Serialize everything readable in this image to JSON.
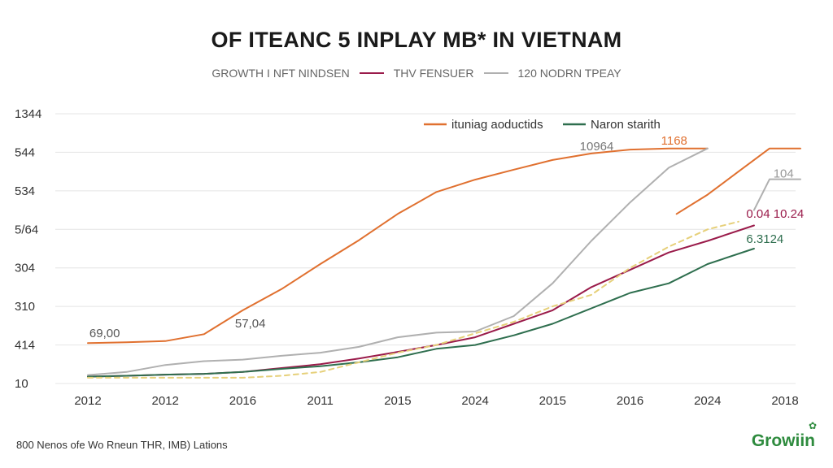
{
  "header": {
    "title": "OF ITEANC 5 INPLAY MB* IN VIETNAM",
    "subtitle": [
      "GROWTH I NFT NINDSEN",
      "THV FENSUER",
      "120 NODRN TPEAY"
    ],
    "subtitle_colors": [
      "#9a1b4a",
      "#b0b0b0"
    ]
  },
  "footer": {
    "footnote": "800 Nenos ofe Wo Rneun THR, IMB) Lations",
    "brand": "Growiin",
    "brand_icon": "leaf-icon"
  },
  "chart_data": {
    "type": "line",
    "title": "OF ITEANC 5 INPLAY MB* IN VIETNAM",
    "xlabel": "",
    "ylabel": "",
    "x_tick_labels": [
      "2012",
      "2012",
      "2016",
      "2011",
      "2015",
      "2024",
      "2015",
      "2016",
      "2024",
      "2018"
    ],
    "y_tick_labels": [
      "10",
      "414",
      "310",
      "304",
      "5/64",
      "534",
      "544",
      "1344"
    ],
    "ylim": [
      0,
      7
    ],
    "xlim": [
      0,
      9
    ],
    "grid": true,
    "legend": [
      "ituniag aoductids",
      "Naron starith"
    ],
    "legend_position": "top-right",
    "series": [
      {
        "name": "ituniag aoductids",
        "color": "#e0702f",
        "dashed": false,
        "x": [
          0,
          0.5,
          1,
          1.5,
          2,
          2.5,
          3,
          3.5,
          4,
          4.5,
          5,
          5.5,
          6,
          6.5,
          7,
          7.5,
          8
        ],
        "y": [
          1.05,
          1.07,
          1.1,
          1.28,
          1.9,
          2.45,
          3.1,
          3.72,
          4.4,
          4.97,
          5.29,
          5.55,
          5.8,
          5.97,
          6.07,
          6.1,
          6.1
        ]
      },
      {
        "name": "",
        "color": "#e0702f",
        "dashed": false,
        "x": [
          7.6,
          8,
          8.4,
          8.8,
          9.2
        ],
        "y": [
          4.4,
          4.9,
          5.5,
          6.1,
          6.1
        ]
      },
      {
        "name": "",
        "color": "#b0b0b0",
        "dashed": false,
        "x": [
          0,
          0.5,
          1,
          1.5,
          2,
          2.5,
          3,
          3.5,
          4,
          4.5,
          5,
          5.5,
          6,
          6.5,
          7,
          7.5,
          8
        ],
        "y": [
          0.22,
          0.3,
          0.48,
          0.58,
          0.62,
          0.72,
          0.8,
          0.95,
          1.2,
          1.32,
          1.35,
          1.75,
          2.6,
          3.7,
          4.7,
          5.6,
          6.1
        ]
      },
      {
        "name": "",
        "color": "#b0b0b0",
        "dashed": false,
        "x": [
          8.6,
          8.8,
          9.2
        ],
        "y": [
          4.5,
          5.3,
          5.3
        ]
      },
      {
        "name": "",
        "color": "#9a1b4a",
        "dashed": false,
        "x": [
          0,
          0.5,
          1,
          1.5,
          2,
          2.5,
          3,
          3.5,
          4,
          4.5,
          5,
          5.5,
          6,
          6.5,
          7,
          7.5,
          8,
          8.6
        ],
        "y": [
          0.18,
          0.2,
          0.23,
          0.25,
          0.3,
          0.4,
          0.5,
          0.65,
          0.82,
          1.0,
          1.2,
          1.55,
          1.9,
          2.5,
          2.95,
          3.4,
          3.7,
          4.1
        ]
      },
      {
        "name": "Naron starith",
        "color": "#2e6e4e",
        "dashed": false,
        "x": [
          0,
          0.5,
          1,
          1.5,
          2,
          2.5,
          3,
          3.5,
          4,
          4.5,
          5,
          5.5,
          6,
          6.5,
          7,
          7.5,
          8,
          8.6
        ],
        "y": [
          0.18,
          0.2,
          0.23,
          0.25,
          0.3,
          0.38,
          0.45,
          0.55,
          0.68,
          0.9,
          1.0,
          1.25,
          1.55,
          1.95,
          2.35,
          2.6,
          3.1,
          3.5
        ]
      },
      {
        "name": "",
        "color": "#e6d07a",
        "dashed": true,
        "x": [
          0,
          0.5,
          1,
          1.5,
          2,
          2.5,
          3,
          3.5,
          4,
          4.5,
          5,
          5.5,
          6,
          6.5,
          7,
          7.5,
          8,
          8.4
        ],
        "y": [
          0.15,
          0.15,
          0.15,
          0.15,
          0.15,
          0.2,
          0.3,
          0.55,
          0.8,
          1.0,
          1.3,
          1.6,
          2.0,
          2.3,
          3.0,
          3.55,
          4.0,
          4.2
        ]
      }
    ],
    "annotations": [
      {
        "text": "69,00",
        "x": 0.02,
        "y": 1.2,
        "color": "#555"
      },
      {
        "text": "57,04",
        "x": 1.9,
        "y": 1.45,
        "color": "#555"
      },
      {
        "text": "10964",
        "x": 6.35,
        "y": 6.05,
        "color": "#777"
      },
      {
        "text": "1168",
        "x": 7.4,
        "y": 6.2,
        "color": "#e0702f"
      },
      {
        "text": "104",
        "x": 8.85,
        "y": 5.35,
        "color": "#999"
      },
      {
        "text": "0.04 10.24",
        "x": 8.5,
        "y": 4.3,
        "color": "#9a1b4a"
      },
      {
        "text": "6.3124",
        "x": 8.5,
        "y": 3.65,
        "color": "#2e6e4e"
      }
    ]
  }
}
